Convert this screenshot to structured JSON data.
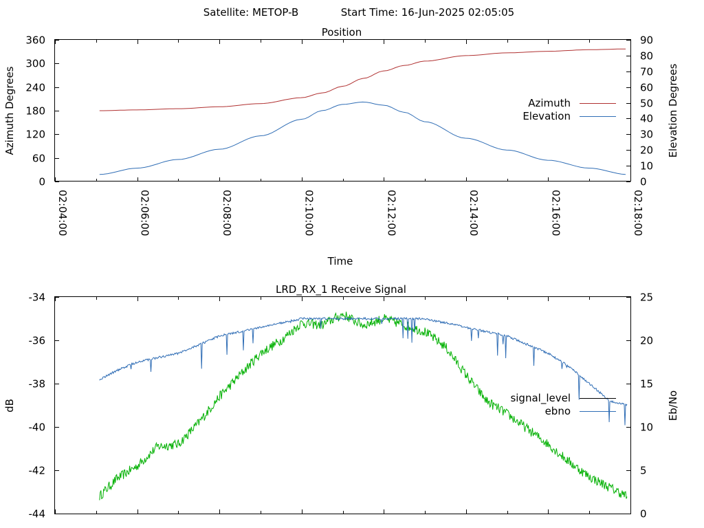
{
  "header": {
    "satellite_label": "Satellite: METOP-B",
    "start_time_label": "Start Time: 16-Jun-2025 02:05:05"
  },
  "chart_data": [
    {
      "type": "line",
      "title": "Position",
      "xlabel": "Time",
      "ylabel": "Azimuth Degrees",
      "y2label": "Elevation Degrees",
      "x_ticks": [
        "02:04:00",
        "02:06:00",
        "02:08:00",
        "02:10:00",
        "02:12:00",
        "02:14:00",
        "02:16:00",
        "02:18:00"
      ],
      "xlim": [
        "02:04:00",
        "02:18:00"
      ],
      "ylim": [
        0,
        360
      ],
      "y_ticks": [
        0,
        60,
        120,
        180,
        240,
        300,
        360
      ],
      "y2lim": [
        0,
        90
      ],
      "y2_ticks": [
        0,
        10,
        20,
        30,
        40,
        50,
        60,
        70,
        80,
        90
      ],
      "grid": false,
      "legend_position": "right",
      "series": [
        {
          "name": "Azimuth",
          "axis": "left",
          "color": "#b03030",
          "x": [
            "02:05:05",
            "02:06:00",
            "02:07:00",
            "02:08:00",
            "02:09:00",
            "02:10:00",
            "02:10:30",
            "02:11:00",
            "02:11:30",
            "02:12:00",
            "02:12:30",
            "02:13:00",
            "02:14:00",
            "02:15:00",
            "02:16:00",
            "02:17:00",
            "02:17:55"
          ],
          "values": [
            180,
            182,
            185,
            190,
            198,
            213,
            225,
            242,
            262,
            281,
            295,
            306,
            320,
            327,
            331,
            335,
            337
          ]
        },
        {
          "name": "Elevation",
          "axis": "right",
          "color": "#2f6db5",
          "x": [
            "02:05:05",
            "02:06:00",
            "02:07:00",
            "02:08:00",
            "02:09:00",
            "02:10:00",
            "02:10:30",
            "02:11:00",
            "02:11:30",
            "02:12:00",
            "02:12:30",
            "02:13:00",
            "02:14:00",
            "02:15:00",
            "02:16:00",
            "02:17:00",
            "02:17:55"
          ],
          "values": [
            4.5,
            8.5,
            14,
            20.5,
            29,
            39.5,
            45,
            49,
            50.5,
            48.5,
            44,
            38,
            27.5,
            20,
            13.5,
            8.5,
            4.5
          ]
        }
      ]
    },
    {
      "type": "line",
      "title": "LRD_RX_1 Receive Signal",
      "ylabel": "dB",
      "y2label": "Eb/No",
      "xlim": [
        "02:04:00",
        "02:18:00"
      ],
      "ylim": [
        -44,
        -34
      ],
      "y_ticks": [
        -44,
        -42,
        -40,
        -38,
        -36,
        -34
      ],
      "y2lim": [
        0,
        25
      ],
      "y2_ticks": [
        0,
        5,
        10,
        15,
        20,
        25
      ],
      "grid": false,
      "legend_position": "right",
      "series": [
        {
          "name": "signal_level",
          "axis": "left",
          "color": "#00b000",
          "x": [
            "02:05:05",
            "02:05:30",
            "02:06:00",
            "02:06:30",
            "02:07:00",
            "02:07:30",
            "02:08:00",
            "02:08:30",
            "02:09:00",
            "02:09:30",
            "02:10:00",
            "02:10:30",
            "02:11:00",
            "02:11:30",
            "02:12:00",
            "02:12:30",
            "02:13:00",
            "02:13:30",
            "02:14:00",
            "02:14:30",
            "02:15:00",
            "02:15:30",
            "02:16:00",
            "02:16:30",
            "02:17:00",
            "02:17:30",
            "02:17:55"
          ],
          "values": [
            -43.2,
            -42.4,
            -41.8,
            -40.9,
            -40.8,
            -39.8,
            -38.6,
            -37.6,
            -36.6,
            -36.0,
            -35.2,
            -35.3,
            -34.8,
            -35.3,
            -35.0,
            -35.3,
            -35.6,
            -36.3,
            -37.6,
            -38.8,
            -39.4,
            -40.1,
            -40.8,
            -41.6,
            -42.3,
            -42.8,
            -43.2
          ]
        },
        {
          "name": "ebno",
          "axis": "right",
          "color": "#2f6db5",
          "x": [
            "02:05:05",
            "02:05:30",
            "02:06:00",
            "02:06:30",
            "02:07:00",
            "02:07:30",
            "02:08:00",
            "02:08:30",
            "02:09:00",
            "02:09:30",
            "02:10:00",
            "02:10:30",
            "02:11:00",
            "02:11:30",
            "02:12:00",
            "02:12:30",
            "02:13:00",
            "02:13:30",
            "02:14:00",
            "02:14:30",
            "02:15:00",
            "02:15:30",
            "02:16:00",
            "02:16:30",
            "02:17:00",
            "02:17:30",
            "02:17:55"
          ],
          "values": [
            15.5,
            16.5,
            17.5,
            18.0,
            18.5,
            19.5,
            20.5,
            21.0,
            21.5,
            22.0,
            22.5,
            22.5,
            22.5,
            22.5,
            22.5,
            22.5,
            22.5,
            22.0,
            21.5,
            21.0,
            20.5,
            19.5,
            18.5,
            17.0,
            15.0,
            13.0,
            12.5
          ]
        }
      ]
    }
  ]
}
